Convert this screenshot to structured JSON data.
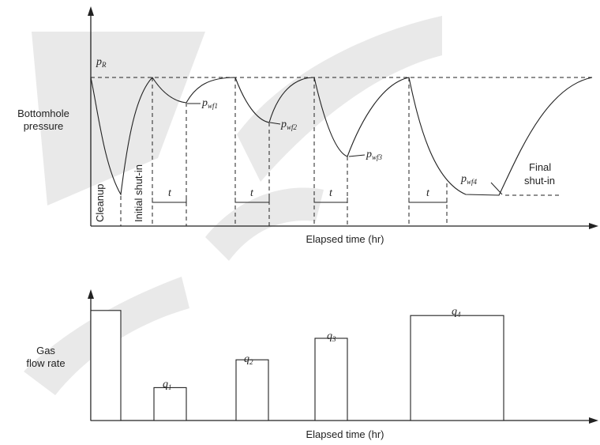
{
  "top_chart": {
    "ylabel_line1": "Bottomhole",
    "ylabel_line2": "pressure",
    "xlabel": "Elapsed time (hr)",
    "pi": {
      "base": "p",
      "sub": "R"
    },
    "pwf1": {
      "base": "p",
      "sub": "wf1"
    },
    "pwf2": {
      "base": "p",
      "sub": "wf2"
    },
    "pwf3": {
      "base": "p",
      "sub": "wf3"
    },
    "pwf4": {
      "base": "p",
      "sub": "wf4"
    },
    "cleanup": "Cleanup",
    "initial_shutin": "Initial shut-in",
    "final_line1": "Final",
    "final_line2": "shut-in",
    "t_label": "t"
  },
  "bottom_chart": {
    "ylabel_line1": "Gas",
    "ylabel_line2": "flow rate",
    "xlabel": "Elapsed time (hr)",
    "q1": {
      "base": "q",
      "sub": "1"
    },
    "q2": {
      "base": "q",
      "sub": "2"
    },
    "q3": {
      "base": "q",
      "sub": "3"
    },
    "q4": {
      "base": "q",
      "sub": "4"
    }
  },
  "chart_data": {
    "type": "bar",
    "categories": [
      "Cleanup",
      "q1",
      "q2",
      "q3",
      "q4"
    ],
    "values": [
      0.87,
      0.26,
      0.48,
      0.65,
      0.83
    ],
    "xlabel": "Elapsed time (hr)",
    "ylabel": "Gas flow rate",
    "ylim": [
      0,
      1
    ]
  }
}
